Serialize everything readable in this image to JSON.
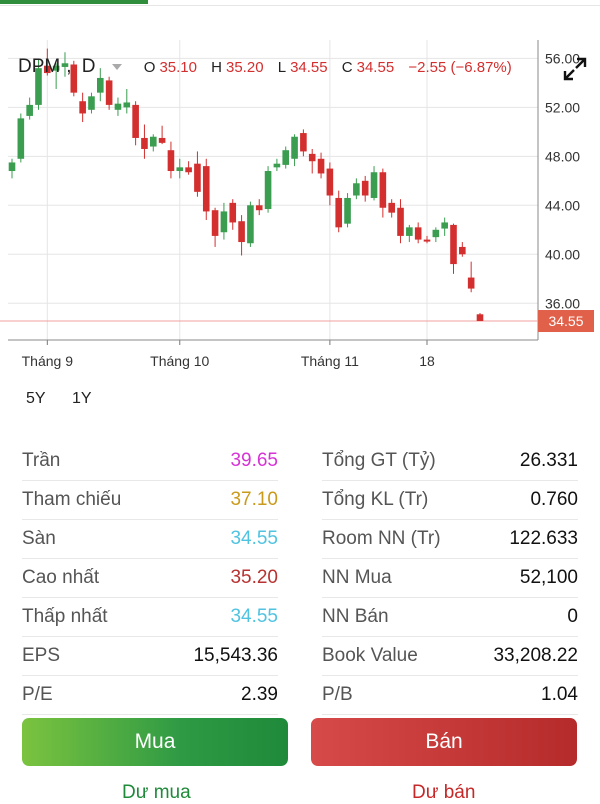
{
  "header": {
    "symbol": "DPM",
    "interval": "D",
    "o_label": "O",
    "o_value": "35.10",
    "h_label": "H",
    "h_value": "35.20",
    "l_label": "L",
    "l_value": "34.55",
    "c_label": "C",
    "c_value": "34.55",
    "change": "−2.55 (−6.87%)"
  },
  "ranges": [
    "5Y",
    "1Y"
  ],
  "colors": {
    "up": "#3a9d4f",
    "down": "#d32f2f",
    "grid": "#e5e5e5",
    "last_price_bg": "#e0604a",
    "ceiling": "#d633d6",
    "reference": "#c99a1b",
    "floor": "#4fc3e0",
    "high": "#b83232"
  },
  "chart_data": {
    "type": "candlestick",
    "ylim": [
      33,
      57.5
    ],
    "yticks": [
      36,
      40,
      44,
      48,
      52,
      56
    ],
    "ytick_labels": [
      "36.00",
      "40.00",
      "44.00",
      "48.00",
      "52.00",
      "56.00"
    ],
    "x_labels": [
      {
        "text": "Tháng 9",
        "index": 4
      },
      {
        "text": "Tháng 10",
        "index": 19
      },
      {
        "text": "Tháng 11",
        "index": 36
      },
      {
        "text": "18",
        "index": 47
      }
    ],
    "last_price": "34.55",
    "last_price_value": 34.55,
    "candles": [
      {
        "o": 46.8,
        "h": 47.8,
        "l": 46.2,
        "c": 47.5
      },
      {
        "o": 47.8,
        "h": 51.5,
        "l": 47.5,
        "c": 51.1
      },
      {
        "o": 51.3,
        "h": 52.8,
        "l": 51.0,
        "c": 52.2
      },
      {
        "o": 52.2,
        "h": 55.9,
        "l": 51.8,
        "c": 55.2
      },
      {
        "o": 55.4,
        "h": 56.8,
        "l": 54.6,
        "c": 54.8
      },
      {
        "o": 55.0,
        "h": 55.6,
        "l": 53.5,
        "c": 55.4
      },
      {
        "o": 55.3,
        "h": 56.5,
        "l": 54.5,
        "c": 55.6
      },
      {
        "o": 55.5,
        "h": 55.8,
        "l": 52.9,
        "c": 53.2
      },
      {
        "o": 52.5,
        "h": 53.2,
        "l": 50.8,
        "c": 51.5
      },
      {
        "o": 51.8,
        "h": 53.2,
        "l": 51.5,
        "c": 52.9
      },
      {
        "o": 53.2,
        "h": 55.2,
        "l": 52.5,
        "c": 54.4
      },
      {
        "o": 54.2,
        "h": 54.5,
        "l": 51.8,
        "c": 52.2
      },
      {
        "o": 51.8,
        "h": 52.8,
        "l": 51.3,
        "c": 52.3
      },
      {
        "o": 52.0,
        "h": 53.5,
        "l": 51.5,
        "c": 52.4
      },
      {
        "o": 52.2,
        "h": 52.5,
        "l": 48.9,
        "c": 49.5
      },
      {
        "o": 49.5,
        "h": 50.6,
        "l": 47.8,
        "c": 48.6
      },
      {
        "o": 48.8,
        "h": 49.8,
        "l": 48.4,
        "c": 49.6
      },
      {
        "o": 49.5,
        "h": 50.5,
        "l": 49.0,
        "c": 49.1
      },
      {
        "o": 48.5,
        "h": 49.2,
        "l": 46.2,
        "c": 46.8
      },
      {
        "o": 46.8,
        "h": 47.8,
        "l": 46.2,
        "c": 47.1
      },
      {
        "o": 47.1,
        "h": 47.6,
        "l": 46.5,
        "c": 46.7
      },
      {
        "o": 47.4,
        "h": 48.4,
        "l": 44.7,
        "c": 45.1
      },
      {
        "o": 47.2,
        "h": 47.8,
        "l": 42.8,
        "c": 43.5
      },
      {
        "o": 43.6,
        "h": 43.8,
        "l": 40.6,
        "c": 41.5
      },
      {
        "o": 41.8,
        "h": 44.2,
        "l": 41.2,
        "c": 43.5
      },
      {
        "o": 44.2,
        "h": 44.5,
        "l": 42.0,
        "c": 42.6
      },
      {
        "o": 42.7,
        "h": 43.2,
        "l": 39.9,
        "c": 41.0
      },
      {
        "o": 40.9,
        "h": 44.3,
        "l": 40.6,
        "c": 44.0
      },
      {
        "o": 44.0,
        "h": 44.5,
        "l": 43.2,
        "c": 43.6
      },
      {
        "o": 43.7,
        "h": 47.2,
        "l": 43.4,
        "c": 46.8
      },
      {
        "o": 47.1,
        "h": 47.8,
        "l": 46.8,
        "c": 47.4
      },
      {
        "o": 47.3,
        "h": 48.8,
        "l": 47.0,
        "c": 48.5
      },
      {
        "o": 47.8,
        "h": 49.8,
        "l": 47.2,
        "c": 49.6
      },
      {
        "o": 49.9,
        "h": 50.2,
        "l": 48.0,
        "c": 48.4
      },
      {
        "o": 48.2,
        "h": 48.6,
        "l": 46.6,
        "c": 47.6
      },
      {
        "o": 47.8,
        "h": 48.3,
        "l": 46.2,
        "c": 46.6
      },
      {
        "o": 47.0,
        "h": 47.5,
        "l": 44.0,
        "c": 44.8
      },
      {
        "o": 44.6,
        "h": 45.2,
        "l": 41.8,
        "c": 42.2
      },
      {
        "o": 42.5,
        "h": 45.0,
        "l": 42.2,
        "c": 44.6
      },
      {
        "o": 44.8,
        "h": 46.2,
        "l": 44.5,
        "c": 45.8
      },
      {
        "o": 46.0,
        "h": 46.4,
        "l": 44.3,
        "c": 44.8
      },
      {
        "o": 44.6,
        "h": 47.2,
        "l": 44.4,
        "c": 46.7
      },
      {
        "o": 46.7,
        "h": 47.0,
        "l": 43.0,
        "c": 43.8
      },
      {
        "o": 44.2,
        "h": 44.5,
        "l": 43.0,
        "c": 43.4
      },
      {
        "o": 43.8,
        "h": 44.5,
        "l": 40.9,
        "c": 41.5
      },
      {
        "o": 41.5,
        "h": 42.4,
        "l": 41.0,
        "c": 42.2
      },
      {
        "o": 42.2,
        "h": 42.6,
        "l": 40.9,
        "c": 41.2
      },
      {
        "o": 41.2,
        "h": 41.5,
        "l": 40.9,
        "c": 41.1
      },
      {
        "o": 41.4,
        "h": 42.2,
        "l": 41.0,
        "c": 42.0
      },
      {
        "o": 42.1,
        "h": 43.0,
        "l": 41.5,
        "c": 42.6
      },
      {
        "o": 42.4,
        "h": 42.5,
        "l": 38.4,
        "c": 39.2
      },
      {
        "o": 40.6,
        "h": 41.0,
        "l": 39.8,
        "c": 40.0
      },
      {
        "o": 38.1,
        "h": 39.4,
        "l": 36.9,
        "c": 37.2
      },
      {
        "o": 35.1,
        "h": 35.2,
        "l": 34.55,
        "c": 34.55
      }
    ]
  },
  "stats": [
    {
      "left_label": "Trần",
      "left_value": "39.65",
      "left_color": "#d633d6",
      "right_label": "Tổng GT (Tỷ)",
      "right_value": "26.331"
    },
    {
      "left_label": "Tham chiếu",
      "left_value": "37.10",
      "left_color": "#c99a1b",
      "right_label": "Tổng KL (Tr)",
      "right_value": "0.760"
    },
    {
      "left_label": "Sàn",
      "left_value": "34.55",
      "left_color": "#4fc3e0",
      "right_label": "Room NN (Tr)",
      "right_value": "122.633"
    },
    {
      "left_label": "Cao nhất",
      "left_value": "35.20",
      "left_color": "#b83232",
      "right_label": "NN Mua",
      "right_value": "52,100"
    },
    {
      "left_label": "Thấp nhất",
      "left_value": "34.55",
      "left_color": "#4fc3e0",
      "right_label": "NN Bán",
      "right_value": "0"
    },
    {
      "left_label": "EPS",
      "left_value": "15,543.36",
      "left_color": "#111111",
      "right_label": "Book Value",
      "right_value": "33,208.22"
    },
    {
      "left_label": "P/E",
      "left_value": "2.39",
      "left_color": "#111111",
      "right_label": "P/B",
      "right_value": "1.04"
    }
  ],
  "buttons": {
    "buy": "Mua",
    "sell": "Bán"
  },
  "links": {
    "buy": "Dư mua",
    "sell": "Dư bán"
  }
}
